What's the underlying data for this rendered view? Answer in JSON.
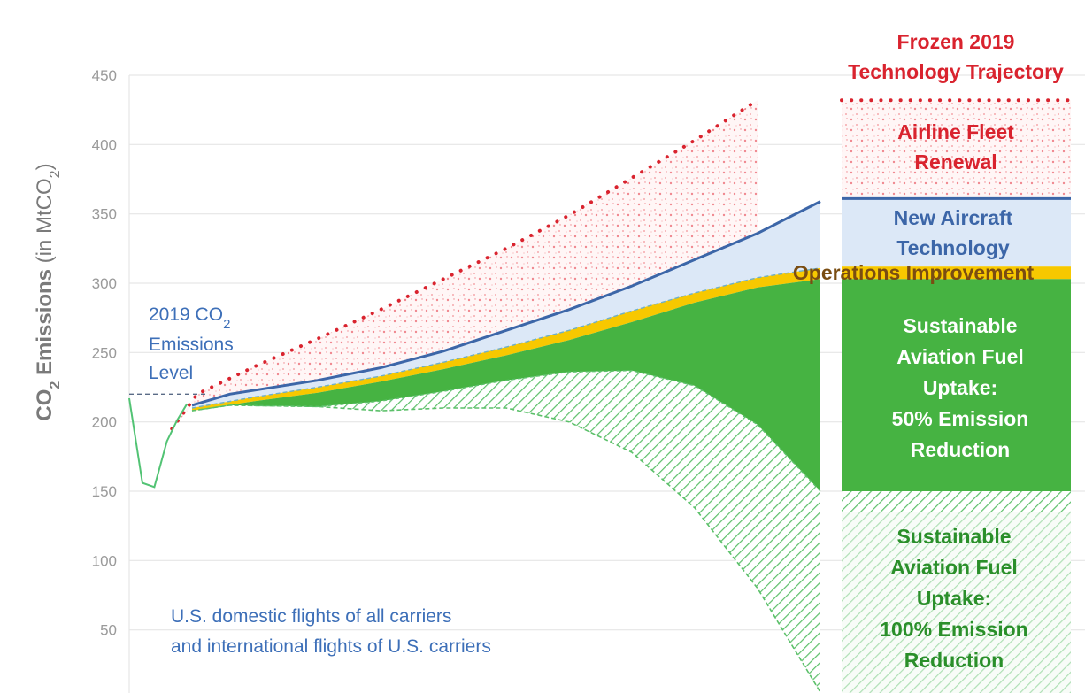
{
  "chart_data": {
    "type": "area",
    "ylabel": {
      "prefix": "CO",
      "sub": "2",
      "rest": " Emissions",
      "unit_open": " (in MtCO",
      "unit_sub": "2",
      "unit_close": ")"
    },
    "ylim": [
      0,
      450
    ],
    "yticks": [
      50,
      100,
      150,
      200,
      250,
      300,
      350,
      400,
      450
    ],
    "grid": true,
    "reference_level": {
      "value": 220,
      "label_lines": [
        {
          "text": "2019 CO",
          "sub": "2"
        },
        {
          "text": "Emissions"
        },
        {
          "text": "Level"
        }
      ]
    },
    "scope_note": [
      "U.S. domestic flights of all carriers",
      "and international flights of U.S. carriers"
    ],
    "historical": [
      [
        0.0,
        217
      ],
      [
        0.105,
        156
      ],
      [
        0.2,
        153
      ],
      [
        0.3,
        186
      ],
      [
        0.38,
        201
      ],
      [
        0.46,
        213
      ]
    ],
    "frozen_trajectory": [
      [
        0.34,
        195
      ],
      [
        0.54,
        220
      ],
      [
        1.0,
        240
      ],
      [
        1.5,
        260
      ],
      [
        2.0,
        281
      ],
      [
        2.5,
        303
      ],
      [
        3.0,
        325
      ],
      [
        3.5,
        349
      ],
      [
        4.0,
        376
      ],
      [
        4.5,
        403
      ],
      [
        5.0,
        432
      ]
    ],
    "new_aircraft_technology": [
      [
        0.5,
        212
      ],
      [
        0.8,
        220
      ],
      [
        1.5,
        230
      ],
      [
        2.0,
        239
      ],
      [
        2.5,
        251
      ],
      [
        3.0,
        266
      ],
      [
        3.5,
        281
      ],
      [
        4.0,
        298
      ],
      [
        4.5,
        317
      ],
      [
        5.0,
        336
      ],
      [
        5.5,
        359
      ]
    ],
    "operations_improvement": [
      [
        0.5,
        210
      ],
      [
        1.0,
        218
      ],
      [
        1.5,
        225
      ],
      [
        2.0,
        233
      ],
      [
        2.5,
        243
      ],
      [
        3.0,
        254
      ],
      [
        3.5,
        266
      ],
      [
        4.0,
        280
      ],
      [
        4.5,
        293
      ],
      [
        5.0,
        304
      ],
      [
        5.5,
        311
      ]
    ],
    "saf_50_upper": [
      [
        0.5,
        208
      ],
      [
        1.0,
        215
      ],
      [
        1.5,
        221
      ],
      [
        2.0,
        229
      ],
      [
        2.5,
        238
      ],
      [
        3.0,
        248
      ],
      [
        3.5,
        259
      ],
      [
        4.0,
        272
      ],
      [
        4.5,
        286
      ],
      [
        5.0,
        297
      ],
      [
        5.5,
        303
      ]
    ],
    "saf_50_lower": [
      [
        0.5,
        208
      ],
      [
        0.8,
        212
      ],
      [
        1.5,
        211
      ],
      [
        2.0,
        215
      ],
      [
        2.5,
        222
      ],
      [
        3.0,
        230
      ],
      [
        3.5,
        236
      ],
      [
        4.0,
        237
      ],
      [
        4.5,
        226
      ],
      [
        5.0,
        198
      ],
      [
        5.5,
        150
      ]
    ],
    "saf_100_lower": [
      [
        0.5,
        208
      ],
      [
        0.8,
        212
      ],
      [
        1.5,
        211
      ],
      [
        2.0,
        208
      ],
      [
        2.5,
        210
      ],
      [
        3.0,
        210
      ],
      [
        3.5,
        200
      ],
      [
        4.0,
        178
      ],
      [
        4.5,
        138
      ],
      [
        5.0,
        80
      ],
      [
        5.5,
        5
      ]
    ],
    "bands": [
      {
        "key": "frozen",
        "lines": [
          "Frozen 2019",
          "Technology Trajectory"
        ],
        "range": [
          432,
          432
        ]
      },
      {
        "key": "fleet",
        "lines": [
          "Airline Fleet",
          "Renewal"
        ],
        "range": [
          361,
          432
        ]
      },
      {
        "key": "tech",
        "lines": [
          "New Aircraft",
          "Technology"
        ],
        "range": [
          312,
          361
        ]
      },
      {
        "key": "ops",
        "lines": [
          "Operations Improvement"
        ],
        "range": [
          303,
          312
        ]
      },
      {
        "key": "saf50",
        "lines": [
          "Sustainable",
          "Aviation Fuel",
          "Uptake:",
          "50% Emission",
          "Reduction"
        ],
        "range": [
          150,
          303
        ]
      },
      {
        "key": "saf100",
        "lines": [
          "Sustainable",
          "Aviation Fuel",
          "Uptake:",
          "100% Emission",
          "Reduction"
        ],
        "range": [
          0,
          150
        ]
      }
    ],
    "colors": {
      "frozen": "#d9232e",
      "fleet_fill": "#fbe4e6",
      "tech_line": "#3c66a8",
      "tech_fill": "#dce8f7",
      "ops_fill": "#f7c800",
      "ops_text": "#7a4d12",
      "saf50_fill": "#46b342",
      "saf100_hatch": "#5cc06a",
      "saf100_text": "#2a8f2a",
      "history": "#52c374",
      "ref_line": "#5a6b86",
      "ref_text": "#3d6fb8",
      "note_text": "#3d6fb8",
      "grid": "#e6e6e6",
      "axis_text": "#9a9a9a"
    }
  }
}
